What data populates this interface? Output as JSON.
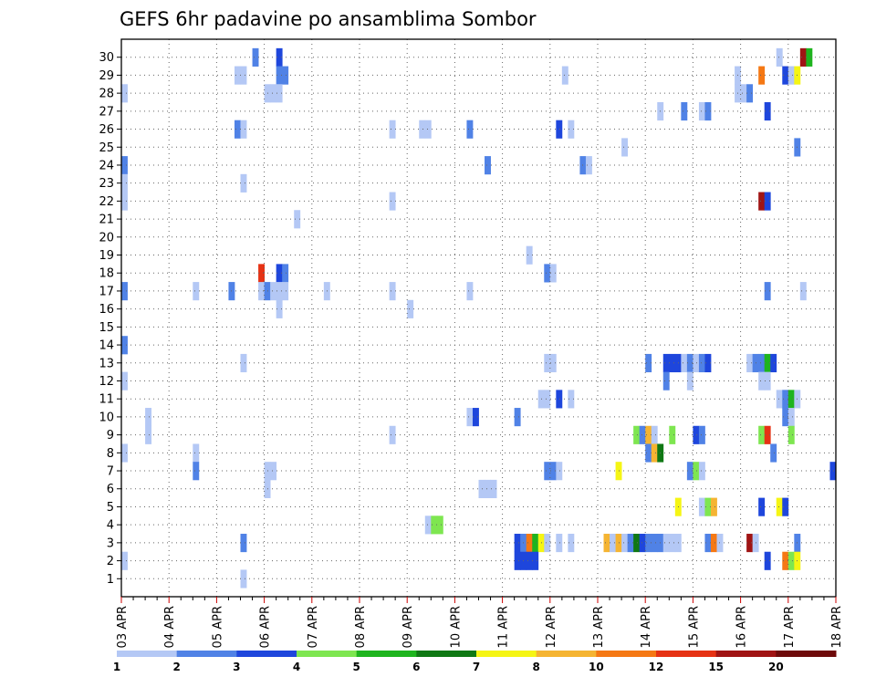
{
  "chart_data": {
    "type": "heatmap",
    "title": "GEFS 6hr padavine po ansamblima Sombor",
    "x_labels": [
      "03 APR",
      "04 APR",
      "05 APR",
      "06 APR",
      "07 APR",
      "08 APR",
      "09 APR",
      "10 APR",
      "11 APR",
      "12 APR",
      "13 APR",
      "14 APR",
      "15 APR",
      "16 APR",
      "17 APR",
      "18 APR"
    ],
    "y_labels": [
      "1",
      "2",
      "3",
      "4",
      "5",
      "6",
      "7",
      "8",
      "9",
      "10",
      "11",
      "12",
      "13",
      "14",
      "15",
      "16",
      "17",
      "18",
      "19",
      "20",
      "21",
      "22",
      "23",
      "24",
      "25",
      "26",
      "27",
      "28",
      "29",
      "30"
    ],
    "x_range": [
      "03 APR",
      "18 APR"
    ],
    "y_range": [
      1,
      30
    ],
    "grid": true,
    "legend": {
      "placement": "bottom",
      "labels": [
        "1",
        "2",
        "3",
        "4",
        "5",
        "6",
        "7",
        "8",
        "10",
        "12",
        "15",
        "20"
      ],
      "colors": [
        "#b4c8f5",
        "#5082e6",
        "#1e46dc",
        "#7ee650",
        "#1eb41e",
        "#0f7814",
        "#f5f514",
        "#f5b432",
        "#f57814",
        "#e63214",
        "#a01414",
        "#6e0a0a"
      ]
    },
    "cells": [
      {
        "member": 30,
        "step": 22,
        "level": 2
      },
      {
        "member": 30,
        "step": 26,
        "level": 3
      },
      {
        "member": 30,
        "step": 110,
        "level": 1
      },
      {
        "member": 30,
        "step": 114,
        "level": 11
      },
      {
        "member": 30,
        "step": 115,
        "level": 5
      },
      {
        "member": 29,
        "step": 19,
        "level": 1
      },
      {
        "member": 29,
        "step": 20,
        "level": 1
      },
      {
        "member": 29,
        "step": 26,
        "level": 2
      },
      {
        "member": 29,
        "step": 27,
        "level": 2
      },
      {
        "member": 29,
        "step": 74,
        "level": 1
      },
      {
        "member": 29,
        "step": 103,
        "level": 1
      },
      {
        "member": 29,
        "step": 107,
        "level": 9
      },
      {
        "member": 29,
        "step": 111,
        "level": 3
      },
      {
        "member": 29,
        "step": 112,
        "level": 1
      },
      {
        "member": 29,
        "step": 113,
        "level": 7
      },
      {
        "member": 28,
        "step": 0,
        "level": 1
      },
      {
        "member": 28,
        "step": 24,
        "level": 1
      },
      {
        "member": 28,
        "step": 25,
        "level": 1
      },
      {
        "member": 28,
        "step": 26,
        "level": 1
      },
      {
        "member": 28,
        "step": 103,
        "level": 1
      },
      {
        "member": 28,
        "step": 104,
        "level": 1
      },
      {
        "member": 28,
        "step": 105,
        "level": 2
      },
      {
        "member": 27,
        "step": 90,
        "level": 1
      },
      {
        "member": 27,
        "step": 94,
        "level": 2
      },
      {
        "member": 27,
        "step": 97,
        "level": 1
      },
      {
        "member": 27,
        "step": 98,
        "level": 2
      },
      {
        "member": 27,
        "step": 108,
        "level": 3
      },
      {
        "member": 26,
        "step": 19,
        "level": 2
      },
      {
        "member": 26,
        "step": 20,
        "level": 1
      },
      {
        "member": 26,
        "step": 45,
        "level": 1
      },
      {
        "member": 26,
        "step": 50,
        "level": 1
      },
      {
        "member": 26,
        "step": 51,
        "level": 1
      },
      {
        "member": 26,
        "step": 58,
        "level": 2
      },
      {
        "member": 26,
        "step": 73,
        "level": 3
      },
      {
        "member": 26,
        "step": 75,
        "level": 1
      },
      {
        "member": 25,
        "step": 84,
        "level": 1
      },
      {
        "member": 25,
        "step": 113,
        "level": 2
      },
      {
        "member": 24,
        "step": 0,
        "level": 2
      },
      {
        "member": 24,
        "step": 61,
        "level": 2
      },
      {
        "member": 24,
        "step": 77,
        "level": 2
      },
      {
        "member": 24,
        "step": 78,
        "level": 1
      },
      {
        "member": 23,
        "step": 0,
        "level": 1
      },
      {
        "member": 23,
        "step": 20,
        "level": 1
      },
      {
        "member": 22,
        "step": 0,
        "level": 1
      },
      {
        "member": 22,
        "step": 45,
        "level": 1
      },
      {
        "member": 22,
        "step": 107,
        "level": 11
      },
      {
        "member": 22,
        "step": 108,
        "level": 3
      },
      {
        "member": 21,
        "step": 29,
        "level": 1
      },
      {
        "member": 19,
        "step": 68,
        "level": 1
      },
      {
        "member": 18,
        "step": 23,
        "level": 10
      },
      {
        "member": 18,
        "step": 26,
        "level": 3
      },
      {
        "member": 18,
        "step": 27,
        "level": 2
      },
      {
        "member": 18,
        "step": 71,
        "level": 2
      },
      {
        "member": 18,
        "step": 72,
        "level": 1
      },
      {
        "member": 17,
        "step": 0,
        "level": 2
      },
      {
        "member": 17,
        "step": 12,
        "level": 1
      },
      {
        "member": 17,
        "step": 18,
        "level": 2
      },
      {
        "member": 17,
        "step": 23,
        "level": 1
      },
      {
        "member": 17,
        "step": 24,
        "level": 2
      },
      {
        "member": 17,
        "step": 25,
        "level": 1
      },
      {
        "member": 17,
        "step": 26,
        "level": 1
      },
      {
        "member": 17,
        "step": 27,
        "level": 1
      },
      {
        "member": 17,
        "step": 34,
        "level": 1
      },
      {
        "member": 17,
        "step": 45,
        "level": 1
      },
      {
        "member": 17,
        "step": 58,
        "level": 1
      },
      {
        "member": 17,
        "step": 108,
        "level": 2
      },
      {
        "member": 17,
        "step": 114,
        "level": 1
      },
      {
        "member": 16,
        "step": 26,
        "level": 1
      },
      {
        "member": 16,
        "step": 48,
        "level": 1
      },
      {
        "member": 14,
        "step": 0,
        "level": 2
      },
      {
        "member": 13,
        "step": 20,
        "level": 1
      },
      {
        "member": 13,
        "step": 71,
        "level": 1
      },
      {
        "member": 13,
        "step": 72,
        "level": 1
      },
      {
        "member": 13,
        "step": 88,
        "level": 2
      },
      {
        "member": 13,
        "step": 91,
        "level": 3
      },
      {
        "member": 13,
        "step": 92,
        "level": 3
      },
      {
        "member": 13,
        "step": 93,
        "level": 3
      },
      {
        "member": 13,
        "step": 94,
        "level": 1
      },
      {
        "member": 13,
        "step": 95,
        "level": 2
      },
      {
        "member": 13,
        "step": 96,
        "level": 1
      },
      {
        "member": 13,
        "step": 97,
        "level": 2
      },
      {
        "member": 13,
        "step": 98,
        "level": 3
      },
      {
        "member": 13,
        "step": 105,
        "level": 1
      },
      {
        "member": 13,
        "step": 106,
        "level": 2
      },
      {
        "member": 13,
        "step": 107,
        "level": 2
      },
      {
        "member": 13,
        "step": 108,
        "level": 5
      },
      {
        "member": 13,
        "step": 109,
        "level": 3
      },
      {
        "member": 12,
        "step": 0,
        "level": 1
      },
      {
        "member": 12,
        "step": 91,
        "level": 2
      },
      {
        "member": 12,
        "step": 95,
        "level": 1
      },
      {
        "member": 12,
        "step": 107,
        "level": 1
      },
      {
        "member": 12,
        "step": 108,
        "level": 1
      },
      {
        "member": 11,
        "step": 70,
        "level": 1
      },
      {
        "member": 11,
        "step": 71,
        "level": 1
      },
      {
        "member": 11,
        "step": 73,
        "level": 3
      },
      {
        "member": 11,
        "step": 75,
        "level": 1
      },
      {
        "member": 11,
        "step": 110,
        "level": 1
      },
      {
        "member": 11,
        "step": 111,
        "level": 2
      },
      {
        "member": 11,
        "step": 112,
        "level": 5
      },
      {
        "member": 11,
        "step": 113,
        "level": 1
      },
      {
        "member": 10,
        "step": 4,
        "level": 1
      },
      {
        "member": 10,
        "step": 58,
        "level": 1
      },
      {
        "member": 10,
        "step": 59,
        "level": 3
      },
      {
        "member": 10,
        "step": 66,
        "level": 2
      },
      {
        "member": 10,
        "step": 111,
        "level": 2
      },
      {
        "member": 10,
        "step": 112,
        "level": 1
      },
      {
        "member": 9,
        "step": 4,
        "level": 1
      },
      {
        "member": 9,
        "step": 45,
        "level": 1
      },
      {
        "member": 9,
        "step": 86,
        "level": 4
      },
      {
        "member": 9,
        "step": 87,
        "level": 2
      },
      {
        "member": 9,
        "step": 88,
        "level": 8
      },
      {
        "member": 9,
        "step": 89,
        "level": 1
      },
      {
        "member": 9,
        "step": 92,
        "level": 4
      },
      {
        "member": 9,
        "step": 96,
        "level": 3
      },
      {
        "member": 9,
        "step": 97,
        "level": 2
      },
      {
        "member": 9,
        "step": 107,
        "level": 4
      },
      {
        "member": 9,
        "step": 108,
        "level": 10
      },
      {
        "member": 9,
        "step": 112,
        "level": 4
      },
      {
        "member": 8,
        "step": 0,
        "level": 1
      },
      {
        "member": 8,
        "step": 12,
        "level": 1
      },
      {
        "member": 8,
        "step": 88,
        "level": 2
      },
      {
        "member": 8,
        "step": 89,
        "level": 8
      },
      {
        "member": 8,
        "step": 90,
        "level": 6
      },
      {
        "member": 8,
        "step": 109,
        "level": 2
      },
      {
        "member": 7,
        "step": 12,
        "level": 2
      },
      {
        "member": 7,
        "step": 24,
        "level": 1
      },
      {
        "member": 7,
        "step": 25,
        "level": 1
      },
      {
        "member": 7,
        "step": 71,
        "level": 2
      },
      {
        "member": 7,
        "step": 72,
        "level": 2
      },
      {
        "member": 7,
        "step": 73,
        "level": 1
      },
      {
        "member": 7,
        "step": 83,
        "level": 7
      },
      {
        "member": 7,
        "step": 95,
        "level": 2
      },
      {
        "member": 7,
        "step": 96,
        "level": 4
      },
      {
        "member": 7,
        "step": 97,
        "level": 1
      },
      {
        "member": 7,
        "step": 119,
        "level": 3
      },
      {
        "member": 6,
        "step": 24,
        "level": 1
      },
      {
        "member": 6,
        "step": 60,
        "level": 1
      },
      {
        "member": 6,
        "step": 61,
        "level": 1
      },
      {
        "member": 6,
        "step": 62,
        "level": 1
      },
      {
        "member": 5,
        "step": 93,
        "level": 7
      },
      {
        "member": 5,
        "step": 97,
        "level": 1
      },
      {
        "member": 5,
        "step": 98,
        "level": 4
      },
      {
        "member": 5,
        "step": 99,
        "level": 8
      },
      {
        "member": 5,
        "step": 107,
        "level": 3
      },
      {
        "member": 5,
        "step": 110,
        "level": 7
      },
      {
        "member": 5,
        "step": 111,
        "level": 3
      },
      {
        "member": 4,
        "step": 51,
        "level": 1
      },
      {
        "member": 4,
        "step": 52,
        "level": 4
      },
      {
        "member": 4,
        "step": 53,
        "level": 4
      },
      {
        "member": 3,
        "step": 20,
        "level": 2
      },
      {
        "member": 3,
        "step": 66,
        "level": 3
      },
      {
        "member": 3,
        "step": 67,
        "level": 2
      },
      {
        "member": 3,
        "step": 68,
        "level": 9
      },
      {
        "member": 3,
        "step": 69,
        "level": 5
      },
      {
        "member": 3,
        "step": 70,
        "level": 7
      },
      {
        "member": 3,
        "step": 71,
        "level": 1
      },
      {
        "member": 3,
        "step": 73,
        "level": 1
      },
      {
        "member": 3,
        "step": 75,
        "level": 1
      },
      {
        "member": 3,
        "step": 81,
        "level": 8
      },
      {
        "member": 3,
        "step": 82,
        "level": 1
      },
      {
        "member": 3,
        "step": 83,
        "level": 8
      },
      {
        "member": 3,
        "step": 84,
        "level": 1
      },
      {
        "member": 3,
        "step": 85,
        "level": 2
      },
      {
        "member": 3,
        "step": 86,
        "level": 6
      },
      {
        "member": 3,
        "step": 87,
        "level": 3
      },
      {
        "member": 3,
        "step": 88,
        "level": 2
      },
      {
        "member": 3,
        "step": 89,
        "level": 2
      },
      {
        "member": 3,
        "step": 90,
        "level": 2
      },
      {
        "member": 3,
        "step": 91,
        "level": 1
      },
      {
        "member": 3,
        "step": 92,
        "level": 1
      },
      {
        "member": 3,
        "step": 93,
        "level": 1
      },
      {
        "member": 3,
        "step": 98,
        "level": 2
      },
      {
        "member": 3,
        "step": 99,
        "level": 9
      },
      {
        "member": 3,
        "step": 100,
        "level": 1
      },
      {
        "member": 3,
        "step": 105,
        "level": 11
      },
      {
        "member": 3,
        "step": 106,
        "level": 1
      },
      {
        "member": 3,
        "step": 113,
        "level": 2
      },
      {
        "member": 2,
        "step": 0,
        "level": 1
      },
      {
        "member": 2,
        "step": 66,
        "level": 3
      },
      {
        "member": 2,
        "step": 67,
        "level": 3
      },
      {
        "member": 2,
        "step": 68,
        "level": 3
      },
      {
        "member": 2,
        "step": 69,
        "level": 3
      },
      {
        "member": 2,
        "step": 108,
        "level": 3
      },
      {
        "member": 2,
        "step": 111,
        "level": 9
      },
      {
        "member": 2,
        "step": 112,
        "level": 4
      },
      {
        "member": 2,
        "step": 113,
        "level": 7
      },
      {
        "member": 1,
        "step": 20,
        "level": 1
      }
    ]
  }
}
